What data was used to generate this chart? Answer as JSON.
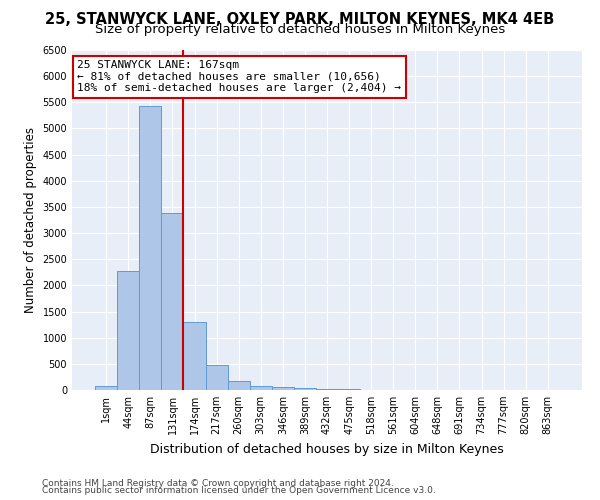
{
  "title": "25, STANWYCK LANE, OXLEY PARK, MILTON KEYNES, MK4 4EB",
  "subtitle": "Size of property relative to detached houses in Milton Keynes",
  "xlabel": "Distribution of detached houses by size in Milton Keynes",
  "ylabel": "Number of detached properties",
  "footnote1": "Contains HM Land Registry data © Crown copyright and database right 2024.",
  "footnote2": "Contains public sector information licensed under the Open Government Licence v3.0.",
  "bar_labels": [
    "1sqm",
    "44sqm",
    "87sqm",
    "131sqm",
    "174sqm",
    "217sqm",
    "260sqm",
    "303sqm",
    "346sqm",
    "389sqm",
    "432sqm",
    "475sqm",
    "518sqm",
    "561sqm",
    "604sqm",
    "648sqm",
    "691sqm",
    "734sqm",
    "777sqm",
    "820sqm",
    "863sqm"
  ],
  "bar_values": [
    70,
    2280,
    5420,
    3380,
    1300,
    480,
    165,
    80,
    50,
    30,
    15,
    10,
    5,
    3,
    2,
    2,
    1,
    1,
    1,
    1,
    1
  ],
  "bar_color": "#aec6e8",
  "bar_edge_color": "#5f9bd5",
  "ylim": [
    0,
    6500
  ],
  "yticks": [
    0,
    500,
    1000,
    1500,
    2000,
    2500,
    3000,
    3500,
    4000,
    4500,
    5000,
    5500,
    6000,
    6500
  ],
  "vline_x": 3.5,
  "vline_color": "#cc0000",
  "annotation_text": "25 STANWYCK LANE: 167sqm\n← 81% of detached houses are smaller (10,656)\n18% of semi-detached houses are larger (2,404) →",
  "annotation_box_color": "#ffffff",
  "annotation_edge_color": "#cc0000",
  "background_color": "#e8eef7",
  "fig_background_color": "#ffffff",
  "grid_color": "#ffffff",
  "title_fontsize": 10.5,
  "subtitle_fontsize": 9.5,
  "ylabel_fontsize": 8.5,
  "xlabel_fontsize": 9,
  "tick_fontsize": 7,
  "annotation_fontsize": 8,
  "footnote_fontsize": 6.5
}
